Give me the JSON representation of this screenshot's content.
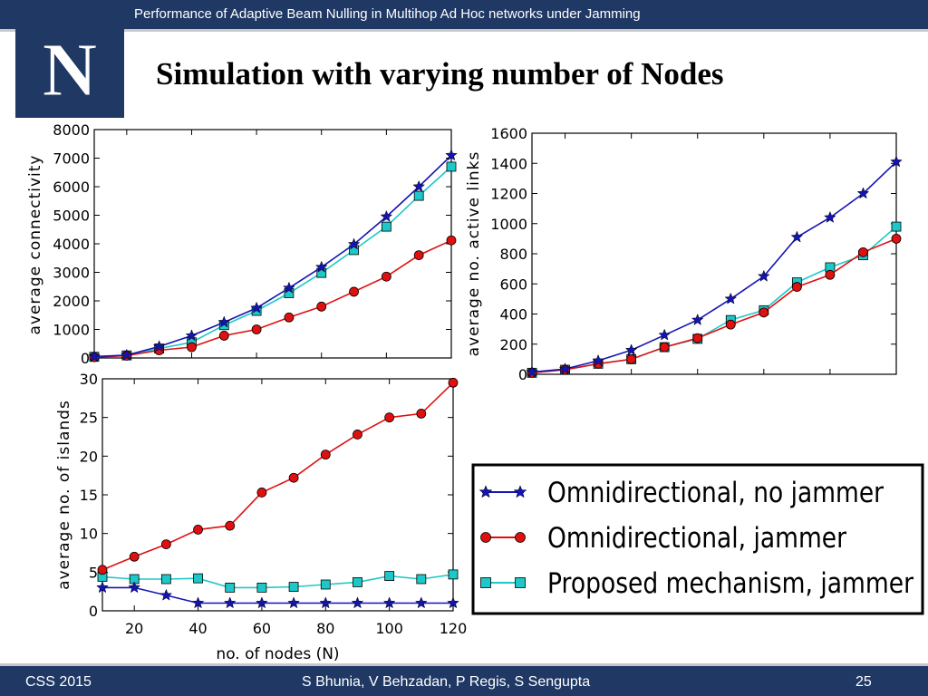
{
  "header": {
    "title": "Performance of Adaptive Beam Nulling in Multihop Ad Hoc networks under Jamming"
  },
  "logo": {
    "icon": "university-n-icon",
    "letter": "N",
    "color": "#1f3864"
  },
  "slide": {
    "title": "Simulation with varying number of Nodes"
  },
  "footer": {
    "left": "CSS 2015",
    "center": "S Bhunia, V Behzadan, P Regis, S Sengupta",
    "page": "25"
  },
  "legend": {
    "entries": [
      {
        "label": "Omnidirectional, no jammer",
        "color": "#1414b4",
        "marker": "star"
      },
      {
        "label": "Omnidirectional, jammer",
        "color": "#e01010",
        "marker": "circle"
      },
      {
        "label": "Proposed mechanism, jammer",
        "color": "#1ec8c8",
        "marker": "square"
      }
    ]
  },
  "chart_data": [
    {
      "type": "line",
      "title": "",
      "xlabel": "",
      "ylabel": "average connectivity",
      "x": [
        10,
        20,
        30,
        40,
        50,
        60,
        70,
        80,
        90,
        100,
        110,
        120
      ],
      "xlim": [
        10,
        120
      ],
      "ylim": [
        0,
        8000
      ],
      "yticks": [
        "0",
        "1000",
        "2000",
        "3000",
        "4000",
        "5000",
        "6000",
        "7000",
        "8000"
      ],
      "xticks": [],
      "series": [
        {
          "name": "Omnidirectional, no jammer",
          "values": [
            50,
            100,
            400,
            780,
            1250,
            1750,
            2450,
            3180,
            3980,
            4950,
            6000,
            7100
          ]
        },
        {
          "name": "Omnidirectional, jammer",
          "values": [
            30,
            80,
            270,
            380,
            780,
            1000,
            1420,
            1800,
            2320,
            2850,
            3600,
            4120
          ]
        },
        {
          "name": "Proposed mechanism, jammer",
          "values": [
            40,
            90,
            330,
            550,
            1150,
            1650,
            2270,
            2980,
            3780,
            4600,
            5680,
            6700
          ]
        }
      ]
    },
    {
      "type": "line",
      "title": "",
      "xlabel": "",
      "ylabel": "average no. active links",
      "x": [
        10,
        20,
        30,
        40,
        50,
        60,
        70,
        80,
        90,
        100,
        110,
        120
      ],
      "xlim": [
        10,
        120
      ],
      "ylim": [
        0,
        1600
      ],
      "yticks": [
        "0",
        "200",
        "400",
        "600",
        "800",
        "1000",
        "1200",
        "1400",
        "1600"
      ],
      "xticks": [],
      "series": [
        {
          "name": "Omnidirectional, no jammer",
          "values": [
            15,
            35,
            90,
            160,
            260,
            360,
            500,
            650,
            910,
            1040,
            1200,
            1410
          ]
        },
        {
          "name": "Omnidirectional, jammer",
          "values": [
            10,
            30,
            70,
            100,
            180,
            240,
            330,
            410,
            580,
            660,
            810,
            900
          ]
        },
        {
          "name": "Proposed mechanism, jammer",
          "values": [
            10,
            30,
            70,
            100,
            180,
            235,
            360,
            425,
            610,
            710,
            790,
            980
          ]
        }
      ]
    },
    {
      "type": "line",
      "title": "",
      "xlabel": "no. of nodes (N)",
      "ylabel": "average no. of islands",
      "x": [
        10,
        20,
        30,
        40,
        50,
        60,
        70,
        80,
        90,
        100,
        110,
        120
      ],
      "xlim": [
        10,
        120
      ],
      "ylim": [
        0,
        30
      ],
      "yticks": [
        "0",
        "5",
        "10",
        "15",
        "20",
        "25",
        "30"
      ],
      "xticks": [
        "20",
        "40",
        "60",
        "80",
        "100",
        "120"
      ],
      "series": [
        {
          "name": "Omnidirectional, no jammer",
          "values": [
            3,
            3,
            2,
            1,
            1,
            1,
            1,
            1,
            1,
            1,
            1,
            1
          ]
        },
        {
          "name": "Omnidirectional, jammer",
          "values": [
            5.3,
            7,
            8.6,
            10.5,
            11,
            15.3,
            17.2,
            20.2,
            22.8,
            25,
            25.5,
            29.5
          ]
        },
        {
          "name": "Proposed mechanism, jammer",
          "values": [
            4.4,
            4.1,
            4.1,
            4.2,
            3,
            3,
            3.1,
            3.4,
            3.7,
            4.5,
            4.1,
            4.7
          ]
        }
      ]
    }
  ]
}
